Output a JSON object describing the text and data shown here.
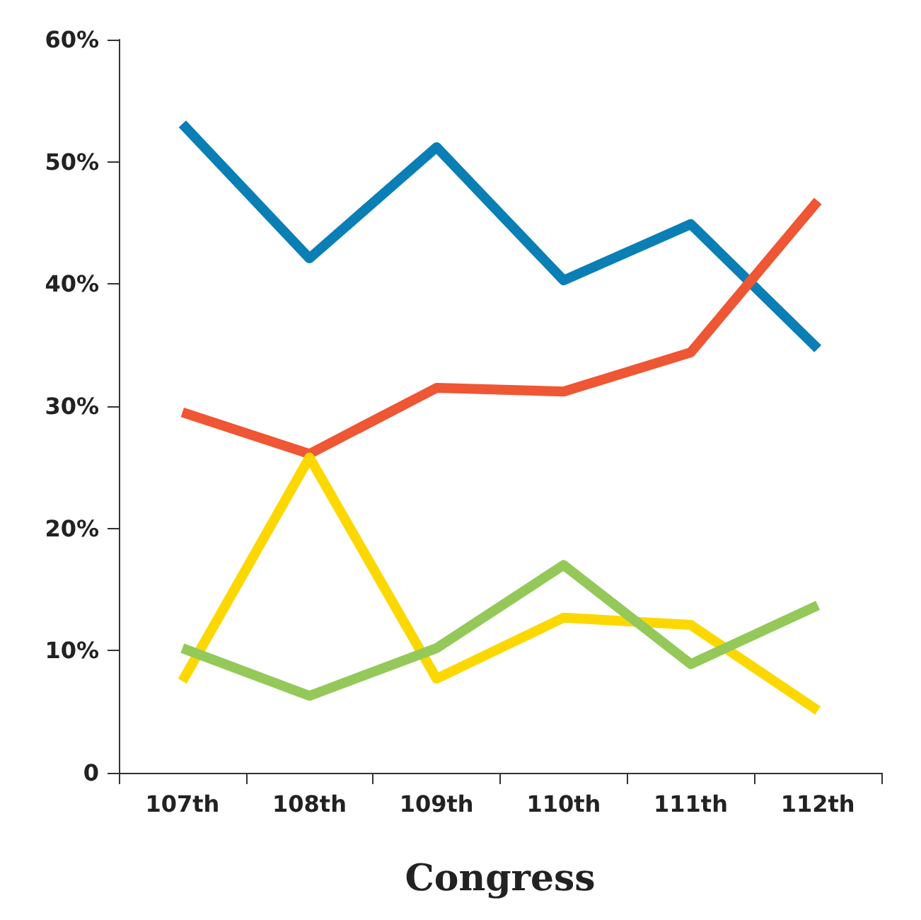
{
  "chart_data": {
    "type": "line",
    "xlabel": "Congress",
    "categories": [
      "107th",
      "108th",
      "109th",
      "110th",
      "111th",
      "112th"
    ],
    "series": [
      {
        "color": "#0a7fb5",
        "values": [
          53.1,
          42.1,
          51.2,
          40.3,
          44.9,
          34.7
        ]
      },
      {
        "color": "#ef5634",
        "values": [
          29.5,
          26.1,
          31.5,
          31.2,
          34.4,
          46.8
        ]
      },
      {
        "color": "#fcd800",
        "values": [
          7.5,
          25.8,
          7.7,
          12.7,
          12.1,
          5.1
        ]
      },
      {
        "color": "#94c95a",
        "values": [
          10.2,
          6.3,
          10.2,
          17.0,
          8.9,
          13.7
        ]
      }
    ],
    "ylim": [
      0,
      60
    ],
    "yticks": [
      0,
      {
        "value": 10,
        "label": "10%"
      },
      {
        "value": 20,
        "label": "20%"
      },
      {
        "value": 30,
        "label": "30%"
      },
      {
        "value": 40,
        "label": "40%"
      },
      {
        "value": 50,
        "label": "50%"
      },
      {
        "value": 60,
        "label": "60%"
      }
    ],
    "grid": false,
    "marker": "none",
    "line_style": "solid"
  }
}
